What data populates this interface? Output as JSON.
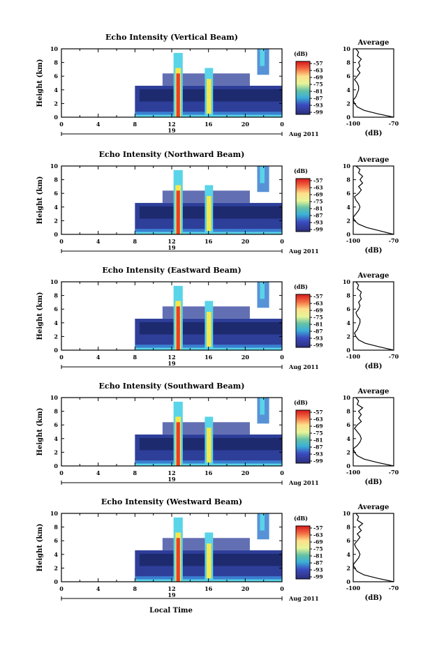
{
  "figure": {
    "xlabel": "Local Time",
    "date_label": "Aug 2011"
  },
  "chart_data": [
    {
      "type": "heatmap",
      "title": "Echo Intensity (Vertical Beam)",
      "ylabel": "Height (km)",
      "xlim": [
        0,
        24
      ],
      "ylim": [
        0,
        10
      ],
      "xticks": [
        "0",
        "4",
        "8",
        "12",
        "16",
        "20",
        "0"
      ],
      "yticks": [
        "0",
        "2",
        "4",
        "6",
        "8",
        "10"
      ],
      "day_label": "19",
      "colorbar": {
        "unit": "(dB)",
        "ticks": [
          "-57",
          "-63",
          "-69",
          "-75",
          "-81",
          "-87",
          "-93",
          "-99"
        ]
      },
      "average": {
        "title": "Average",
        "xlabel": "(dB)",
        "xlim": [
          -100,
          -70
        ],
        "xticks": [
          "-100",
          "-70"
        ],
        "profile": [
          [
            0,
            -70
          ],
          [
            0.5,
            -82
          ],
          [
            1,
            -92
          ],
          [
            1.5,
            -97
          ],
          [
            2,
            -99
          ],
          [
            2.5,
            -100
          ],
          [
            3,
            -98
          ],
          [
            3.5,
            -97
          ],
          [
            4,
            -96
          ],
          [
            4.5,
            -96
          ],
          [
            5,
            -97
          ],
          [
            5.5,
            -99
          ],
          [
            6,
            -97
          ],
          [
            6.5,
            -95
          ],
          [
            7,
            -97
          ],
          [
            7.5,
            -95
          ],
          [
            8,
            -96
          ],
          [
            8.5,
            -94
          ],
          [
            9,
            -97
          ],
          [
            9.5,
            -96
          ],
          [
            10,
            -98
          ]
        ]
      }
    },
    {
      "type": "heatmap",
      "title": "Echo Intensity (Northward Beam)",
      "ylabel": "Height (km)",
      "xlim": [
        0,
        24
      ],
      "ylim": [
        0,
        10
      ],
      "xticks": [
        "0",
        "4",
        "8",
        "12",
        "16",
        "20",
        "0"
      ],
      "yticks": [
        "0",
        "2",
        "4",
        "6",
        "8",
        "10"
      ],
      "day_label": "19",
      "colorbar": {
        "unit": "(dB)",
        "ticks": [
          "-57",
          "-63",
          "-69",
          "-75",
          "-81",
          "-87",
          "-93",
          "-99"
        ]
      },
      "average": {
        "title": "Average",
        "xlabel": "(dB)",
        "xlim": [
          -100,
          -70
        ],
        "xticks": [
          "-100",
          "-70"
        ],
        "profile": [
          [
            0,
            -70
          ],
          [
            0.5,
            -80
          ],
          [
            1,
            -90
          ],
          [
            1.5,
            -96
          ],
          [
            2,
            -99
          ],
          [
            2.5,
            -100
          ],
          [
            3,
            -98
          ],
          [
            3.5,
            -96
          ],
          [
            4,
            -95
          ],
          [
            4.5,
            -96
          ],
          [
            5,
            -98
          ],
          [
            5.5,
            -99
          ],
          [
            6,
            -96
          ],
          [
            6.5,
            -94
          ],
          [
            7,
            -96
          ],
          [
            7.5,
            -93
          ],
          [
            8,
            -95
          ],
          [
            8.5,
            -93
          ],
          [
            9,
            -96
          ],
          [
            9.5,
            -95
          ],
          [
            10,
            -98
          ]
        ]
      }
    },
    {
      "type": "heatmap",
      "title": "Echo Intensity (Eastward Beam)",
      "ylabel": "Height (km)",
      "xlim": [
        0,
        24
      ],
      "ylim": [
        0,
        10
      ],
      "xticks": [
        "0",
        "4",
        "8",
        "12",
        "16",
        "20",
        "0"
      ],
      "yticks": [
        "0",
        "2",
        "4",
        "6",
        "8",
        "10"
      ],
      "day_label": "19",
      "colorbar": {
        "unit": "(dB)",
        "ticks": [
          "-57",
          "-63",
          "-69",
          "-75",
          "-81",
          "-87",
          "-93",
          "-99"
        ]
      },
      "average": {
        "title": "Average",
        "xlabel": "(dB)",
        "xlim": [
          -100,
          -70
        ],
        "xticks": [
          "-100",
          "-70"
        ],
        "profile": [
          [
            0,
            -70
          ],
          [
            0.5,
            -81
          ],
          [
            1,
            -91
          ],
          [
            1.5,
            -96
          ],
          [
            2,
            -98
          ],
          [
            2.5,
            -99
          ],
          [
            3,
            -97
          ],
          [
            3.5,
            -96
          ],
          [
            4,
            -95
          ],
          [
            4.5,
            -95
          ],
          [
            5,
            -97
          ],
          [
            5.5,
            -98
          ],
          [
            6,
            -96
          ],
          [
            6.5,
            -95
          ],
          [
            7,
            -96
          ],
          [
            7.5,
            -94
          ],
          [
            8,
            -95
          ],
          [
            8.5,
            -94
          ],
          [
            9,
            -97
          ],
          [
            9.5,
            -96
          ],
          [
            10,
            -98
          ]
        ]
      }
    },
    {
      "type": "heatmap",
      "title": "Echo Intensity (Southward Beam)",
      "ylabel": "Height (km)",
      "xlim": [
        0,
        24
      ],
      "ylim": [
        0,
        10
      ],
      "xticks": [
        "0",
        "4",
        "8",
        "12",
        "16",
        "20",
        "0"
      ],
      "yticks": [
        "0",
        "2",
        "4",
        "6",
        "8",
        "10"
      ],
      "day_label": "19",
      "colorbar": {
        "unit": "(dB)",
        "ticks": [
          "-57",
          "-63",
          "-69",
          "-75",
          "-81",
          "-87",
          "-93",
          "-99"
        ]
      },
      "average": {
        "title": "Average",
        "xlabel": "(dB)",
        "xlim": [
          -100,
          -70
        ],
        "xticks": [
          "-100",
          "-70"
        ],
        "profile": [
          [
            0,
            -70
          ],
          [
            0.5,
            -82
          ],
          [
            1,
            -92
          ],
          [
            1.5,
            -97
          ],
          [
            2,
            -99
          ],
          [
            2.5,
            -100
          ],
          [
            3,
            -97
          ],
          [
            3.5,
            -95
          ],
          [
            4,
            -94
          ],
          [
            4.5,
            -95
          ],
          [
            5,
            -97
          ],
          [
            5.5,
            -99
          ],
          [
            6,
            -97
          ],
          [
            6.5,
            -94
          ],
          [
            7,
            -96
          ],
          [
            7.5,
            -94
          ],
          [
            8,
            -96
          ],
          [
            8.5,
            -93
          ],
          [
            9,
            -97
          ],
          [
            9.5,
            -96
          ],
          [
            10,
            -98
          ]
        ]
      }
    },
    {
      "type": "heatmap",
      "title": "Echo Intensity (Westward Beam)",
      "ylabel": "Height (km)",
      "xlim": [
        0,
        24
      ],
      "ylim": [
        0,
        10
      ],
      "xticks": [
        "0",
        "4",
        "8",
        "12",
        "16",
        "20",
        "0"
      ],
      "yticks": [
        "0",
        "2",
        "4",
        "6",
        "8",
        "10"
      ],
      "day_label": "19",
      "colorbar": {
        "unit": "(dB)",
        "ticks": [
          "-57",
          "-63",
          "-69",
          "-75",
          "-81",
          "-87",
          "-93",
          "-99"
        ]
      },
      "average": {
        "title": "Average",
        "xlabel": "(dB)",
        "xlim": [
          -100,
          -70
        ],
        "xticks": [
          "-100",
          "-70"
        ],
        "profile": [
          [
            0,
            -70
          ],
          [
            0.5,
            -82
          ],
          [
            1,
            -92
          ],
          [
            1.5,
            -97
          ],
          [
            2,
            -99
          ],
          [
            2.5,
            -100
          ],
          [
            3,
            -98
          ],
          [
            3.5,
            -96
          ],
          [
            4,
            -95
          ],
          [
            4.5,
            -96
          ],
          [
            5,
            -98
          ],
          [
            5.5,
            -99
          ],
          [
            6,
            -97
          ],
          [
            6.5,
            -95
          ],
          [
            7,
            -97
          ],
          [
            7.5,
            -94
          ],
          [
            8,
            -96
          ],
          [
            8.5,
            -93
          ],
          [
            9,
            -97
          ],
          [
            9.5,
            -96
          ],
          [
            10,
            -98
          ]
        ]
      }
    }
  ],
  "colors": {
    "scale": [
      "#d7191c",
      "#f46d43",
      "#fdae61",
      "#fee08b",
      "#e6f598",
      "#abdda4",
      "#66c2a5",
      "#3288bd",
      "#3b4cc0",
      "#2c2f7a"
    ],
    "echo_weak": "#2e3f9a",
    "echo_dark": "#1e2a6e",
    "echo_mid": "#3a7fd0",
    "echo_cyan": "#59d4e8",
    "echo_strong": "#e8402a",
    "echo_yellow": "#f6e84a"
  }
}
